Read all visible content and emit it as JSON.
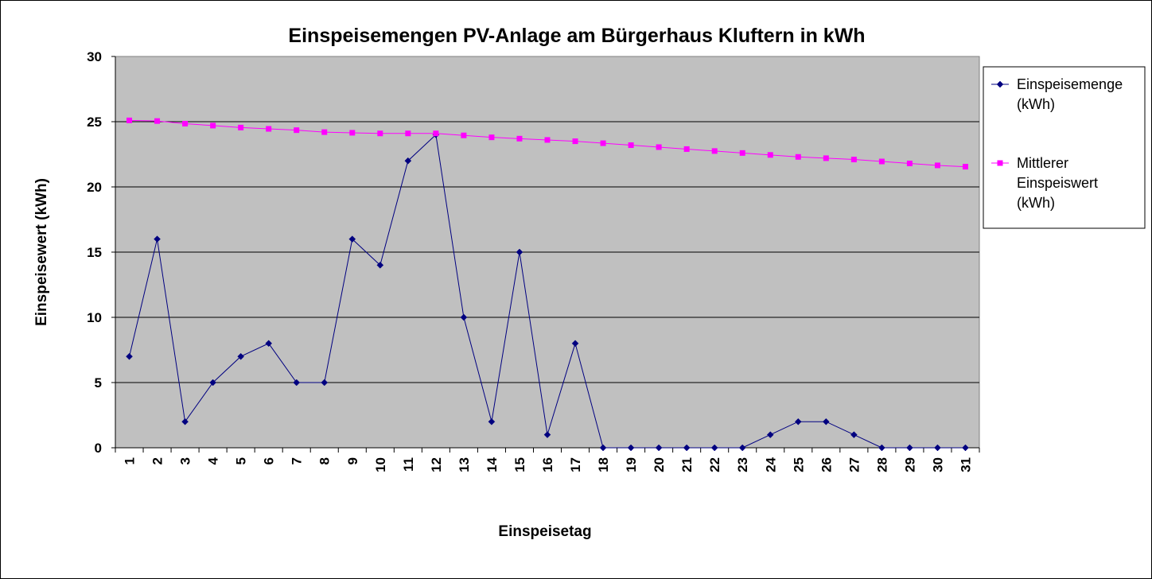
{
  "chart_data": {
    "type": "line",
    "title": "Einspeisemengen PV-Anlage am Bürgerhaus Kluftern in kWh",
    "xlabel": "Einspeisetag",
    "ylabel": "Einspeisewert (kWh)",
    "ylim": [
      0,
      30
    ],
    "yticks": [
      "0",
      "5",
      "10",
      "15",
      "20",
      "25",
      "30"
    ],
    "categories": [
      "1",
      "2",
      "3",
      "4",
      "5",
      "6",
      "7",
      "8",
      "9",
      "10",
      "11",
      "12",
      "13",
      "14",
      "15",
      "16",
      "17",
      "18",
      "19",
      "20",
      "21",
      "22",
      "23",
      "24",
      "25",
      "26",
      "27",
      "28",
      "29",
      "30",
      "31"
    ],
    "grid": "horizontal",
    "legend_position": "right",
    "plot_background": "#c0c0c0",
    "series": [
      {
        "name": "Einspeisemenge (kWh)",
        "legend_lines": [
          "Einspeisemenge",
          "(kWh)"
        ],
        "color": "#000080",
        "marker": "diamond",
        "values": [
          7,
          16,
          2,
          5,
          7,
          8,
          5,
          5,
          16,
          14,
          22,
          24,
          10,
          2,
          15,
          1,
          8,
          0,
          0,
          0,
          0,
          0,
          0,
          1,
          2,
          2,
          1,
          0,
          0,
          0,
          0
        ]
      },
      {
        "name": "Mittlerer Einspeiswert (kWh)",
        "legend_lines": [
          "Mittlerer",
          "Einspeiswert",
          "(kWh)"
        ],
        "color": "#ff00ff",
        "marker": "square",
        "values": [
          25.1,
          25.05,
          24.85,
          24.7,
          24.55,
          24.45,
          24.35,
          24.2,
          24.15,
          24.1,
          24.1,
          24.1,
          23.95,
          23.8,
          23.7,
          23.6,
          23.5,
          23.35,
          23.2,
          23.05,
          22.9,
          22.75,
          22.6,
          22.45,
          22.3,
          22.2,
          22.1,
          21.95,
          21.8,
          21.65,
          21.55
        ]
      }
    ]
  }
}
